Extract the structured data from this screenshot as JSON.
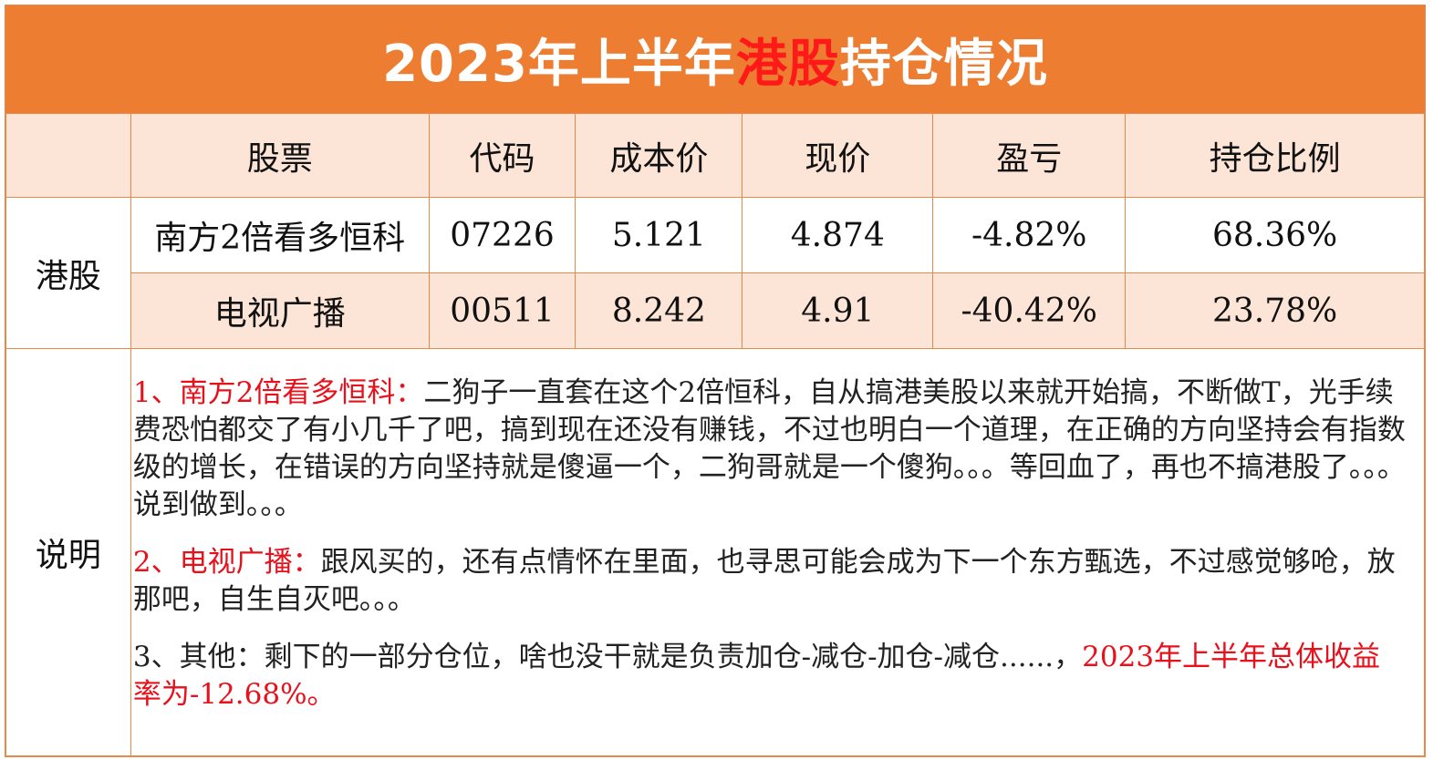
{
  "title": {
    "prefix": "2023年上半年",
    "highlight": "港股",
    "suffix": "持仓情况",
    "highlight_color": "#ff1a1a",
    "bar_color": "#ed7d31"
  },
  "table": {
    "headers": [
      "股票",
      "代码",
      "成本价",
      "现价",
      "盈亏",
      "持仓比例"
    ],
    "category": "港股",
    "rows": [
      {
        "name": "南方2倍看多恒科",
        "code": "07226",
        "cost": "5.121",
        "price": "4.874",
        "pnl": "-4.82%",
        "ratio": "68.36%"
      },
      {
        "name": "电视广播",
        "code": "00511",
        "cost": "8.242",
        "price": "4.91",
        "pnl": "-40.42%",
        "ratio": "23.78%"
      }
    ]
  },
  "notes": {
    "label": "说明",
    "items": [
      {
        "lead": "1、南方2倍看多恒科：",
        "text": "二狗子一直套在这个2倍恒科，自从搞港美股以来就开始搞，不断做T，光手续费恐怕都交了有小几千了吧，搞到现在还没有赚钱，不过也明白一个道理，在正确的方向坚持会有指数级的增长，在错误的方向坚持就是傻逼一个，二狗哥就是一个傻狗。。。等回血了，再也不搞港股了。。。说到做到。。。"
      },
      {
        "lead": "2、电视广播：",
        "text": "跟风买的，还有点情怀在里面，也寻思可能会成为下一个东方甄选，不过感觉够呛，放那吧，自生自灭吧。。。"
      },
      {
        "lead": "3、其他：",
        "text": "剩下的一部分仓位，啥也没干就是负责加仓-减仓-加仓-减仓......，",
        "highlight": "2023年上半年总体收益率为-12.68%。"
      }
    ]
  }
}
